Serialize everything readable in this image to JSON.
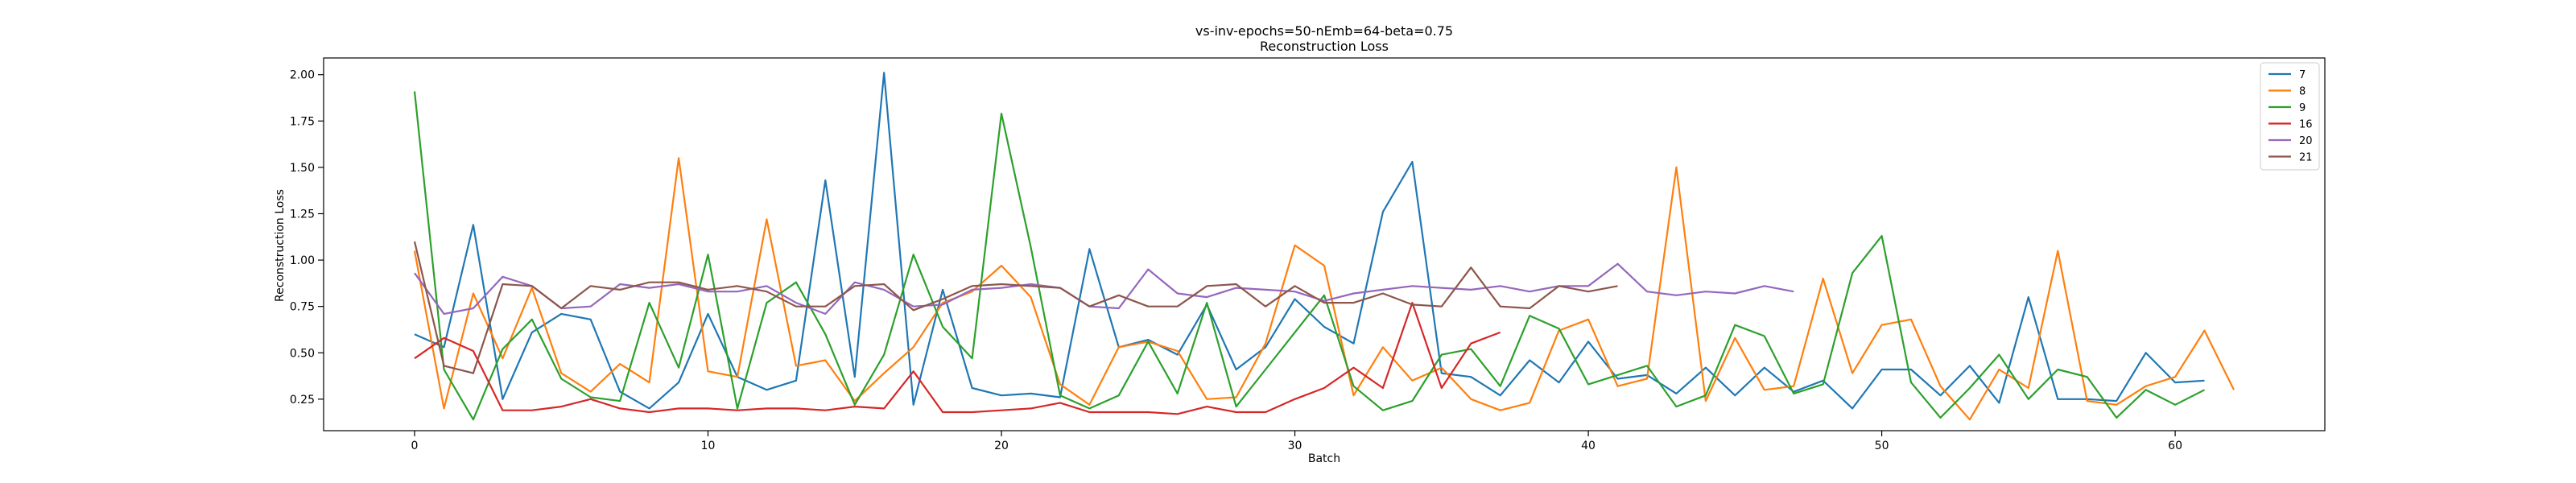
{
  "chart_data": {
    "type": "line",
    "title": "vs-inv-epochs=50-nEmb=64-beta=0.75",
    "subtitle": "Reconstruction Loss",
    "xlabel": "Batch",
    "ylabel": "Reconstruction Loss",
    "xlim": [
      -3.1,
      65.1
    ],
    "ylim": [
      0.08,
      2.09
    ],
    "xticks": [
      0,
      10,
      20,
      30,
      40,
      50,
      60
    ],
    "yticks": [
      0.25,
      0.5,
      0.75,
      1.0,
      1.25,
      1.5,
      1.75,
      2.0
    ],
    "ytick_labels": [
      "0.25",
      "0.50",
      "0.75",
      "1.00",
      "1.25",
      "1.50",
      "1.75",
      "2.00"
    ],
    "grid": false,
    "legend_position": "top-right",
    "series": [
      {
        "name": "7",
        "color": "#1f77b4",
        "values": [
          0.6,
          0.53,
          1.19,
          0.25,
          0.61,
          0.71,
          0.68,
          0.29,
          0.2,
          0.34,
          0.71,
          0.37,
          0.3,
          0.35,
          1.43,
          0.37,
          2.01,
          0.22,
          0.84,
          0.31,
          0.27,
          0.28,
          0.26,
          1.06,
          0.53,
          0.57,
          0.49,
          0.76,
          0.41,
          0.53,
          0.79,
          0.64,
          0.55,
          1.26,
          1.53,
          0.39,
          0.37,
          0.27,
          0.46,
          0.34,
          0.56,
          0.36,
          0.38,
          0.28,
          0.42,
          0.27,
          0.42,
          0.29,
          0.35,
          0.2,
          0.41,
          0.41,
          0.27,
          0.43,
          0.23,
          0.8,
          0.25,
          0.25,
          0.24,
          0.5,
          0.34,
          0.35
        ]
      },
      {
        "name": "8",
        "color": "#ff7f0e",
        "values": [
          1.05,
          0.2,
          0.82,
          0.47,
          0.85,
          0.39,
          0.29,
          0.44,
          0.34,
          1.55,
          0.4,
          0.37,
          1.22,
          0.43,
          0.46,
          0.24,
          0.39,
          0.53,
          0.77,
          0.83,
          0.97,
          0.8,
          0.33,
          0.22,
          0.53,
          0.56,
          0.51,
          0.25,
          0.26,
          0.55,
          1.08,
          0.97,
          0.27,
          0.53,
          0.35,
          0.42,
          0.25,
          0.19,
          0.23,
          0.62,
          0.68,
          0.32,
          0.36,
          1.5,
          0.24,
          0.58,
          0.3,
          0.32,
          0.9,
          0.39,
          0.65,
          0.68,
          0.32,
          0.14,
          0.41,
          0.31,
          1.05,
          0.24,
          0.22,
          0.32,
          0.37,
          0.62,
          0.3
        ]
      },
      {
        "name": "9",
        "color": "#2ca02c",
        "values": [
          1.91,
          0.41,
          0.14,
          0.52,
          0.68,
          0.36,
          0.26,
          0.24,
          0.77,
          0.42,
          1.03,
          0.2,
          0.77,
          0.88,
          0.6,
          0.22,
          0.49,
          1.03,
          0.64,
          0.47,
          1.79,
          1.07,
          0.27,
          0.2,
          0.27,
          0.56,
          0.28,
          0.77,
          0.21,
          0.41,
          0.61,
          0.81,
          0.32,
          0.19,
          0.24,
          0.49,
          0.52,
          0.32,
          0.7,
          0.63,
          0.33,
          0.38,
          0.43,
          0.21,
          0.27,
          0.65,
          0.59,
          0.28,
          0.33,
          0.93,
          1.13,
          0.34,
          0.15,
          0.31,
          0.49,
          0.25,
          0.41,
          0.37,
          0.15,
          0.3,
          0.22,
          0.3
        ]
      },
      {
        "name": "16",
        "color": "#d62728",
        "values": [
          0.47,
          0.58,
          0.51,
          0.19,
          0.19,
          0.21,
          0.25,
          0.2,
          0.18,
          0.2,
          0.2,
          0.19,
          0.2,
          0.2,
          0.19,
          0.21,
          0.2,
          0.4,
          0.18,
          0.18,
          0.19,
          0.2,
          0.23,
          0.18,
          0.18,
          0.18,
          0.17,
          0.21,
          0.18,
          0.18,
          0.25,
          0.31,
          0.42,
          0.31,
          0.77,
          0.31,
          0.55,
          0.61
        ]
      },
      {
        "name": "20",
        "color": "#9467bd",
        "values": [
          0.93,
          0.71,
          0.74,
          0.91,
          0.86,
          0.74,
          0.75,
          0.87,
          0.85,
          0.87,
          0.83,
          0.83,
          0.86,
          0.77,
          0.71,
          0.88,
          0.84,
          0.75,
          0.76,
          0.84,
          0.85,
          0.87,
          0.85,
          0.75,
          0.74,
          0.95,
          0.82,
          0.8,
          0.85,
          0.84,
          0.83,
          0.78,
          0.82,
          0.84,
          0.86,
          0.85,
          0.84,
          0.86,
          0.83,
          0.86,
          0.86,
          0.98,
          0.83,
          0.81,
          0.83,
          0.82,
          0.86,
          0.83
        ]
      },
      {
        "name": "21",
        "color": "#8c564b",
        "values": [
          1.1,
          0.43,
          0.39,
          0.87,
          0.86,
          0.74,
          0.86,
          0.84,
          0.88,
          0.88,
          0.84,
          0.86,
          0.83,
          0.75,
          0.75,
          0.86,
          0.87,
          0.73,
          0.79,
          0.86,
          0.87,
          0.86,
          0.85,
          0.75,
          0.81,
          0.75,
          0.75,
          0.86,
          0.87,
          0.75,
          0.86,
          0.77,
          0.77,
          0.82,
          0.76,
          0.75,
          0.96,
          0.75,
          0.74,
          0.86,
          0.83,
          0.86
        ]
      }
    ]
  }
}
